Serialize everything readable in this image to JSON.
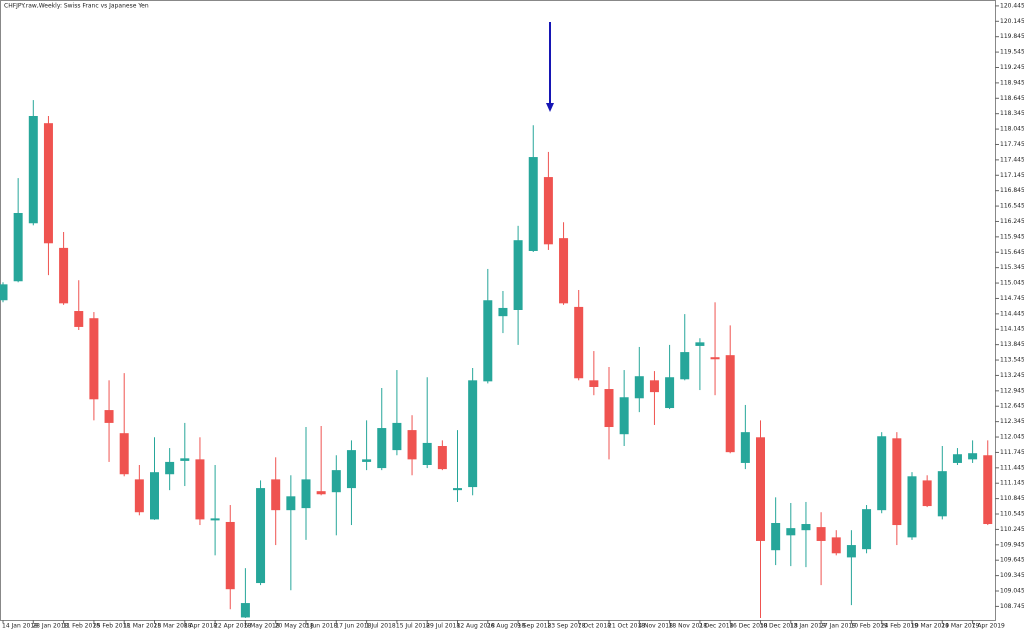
{
  "chart_data": {
    "type": "candlestick",
    "title": "CHFJPY.raw,Weekly: Swiss Franc vs Japanese Yen",
    "categories": [
      "14 Jan 2018",
      null,
      "28 Jan 2018",
      null,
      "11 Feb 2018",
      null,
      "25 Feb 2018",
      null,
      "11 Mar 2018",
      null,
      "25 Mar 2018",
      null,
      "8 Apr 2018",
      null,
      "22 Apr 2018",
      null,
      "6 May 2018",
      null,
      "20 May 2018",
      null,
      "3 Jun 2018",
      null,
      "17 Jun 2018",
      null,
      "1 Jul 2018",
      null,
      "15 Jul 2018",
      null,
      "29 Jul 2018",
      null,
      "12 Aug 2018",
      null,
      "26 Aug 2018",
      null,
      "9 Sep 2018",
      null,
      "23 Sep 2018",
      null,
      "7 Oct 2018",
      null,
      "21 Oct 2018",
      null,
      "4 Nov 2018",
      null,
      "18 Nov 2018",
      null,
      "2 Dec 2018",
      null,
      "16 Dec 2018",
      null,
      "30 Dec 2018",
      null,
      "13 Jan 2019",
      null,
      "27 Jan 2019",
      null,
      "10 Feb 2019",
      null,
      "24 Feb 2019",
      null,
      "10 Mar 2019",
      null,
      "24 Mar 2019",
      null,
      "7 Apr 2019",
      null
    ],
    "open": [
      114.71,
      115.08,
      116.21,
      118.16,
      115.73,
      114.5,
      114.36,
      112.57,
      112.12,
      111.22,
      110.44,
      111.32,
      111.58,
      111.61,
      110.43,
      110.39,
      108.53,
      109.2,
      111.22,
      110.62,
      110.66,
      110.99,
      110.97,
      111.05,
      111.56,
      111.44,
      111.79,
      112.18,
      111.5,
      111.87,
      111.01,
      111.07,
      113.13,
      114.4,
      114.52,
      115.67,
      117.11,
      115.92,
      114.58,
      113.15,
      112.98,
      112.1,
      112.8,
      113.15,
      112.61,
      113.17,
      113.82,
      113.6,
      113.64,
      111.54,
      112.04,
      109.84,
      110.13,
      110.23,
      110.29,
      110.09,
      109.7,
      109.86,
      110.62,
      112.02,
      110.09,
      111.2,
      110.5,
      111.54,
      111.61,
      111.69
    ],
    "high": [
      115.06,
      117.09,
      118.61,
      118.3,
      116.04,
      115.1,
      114.48,
      113.15,
      113.29,
      111.5,
      112.04,
      111.83,
      112.32,
      112.04,
      111.5,
      110.72,
      109.49,
      111.2,
      111.65,
      111.3,
      112.24,
      112.26,
      111.69,
      111.98,
      112.37,
      113.0,
      113.35,
      112.47,
      113.21,
      111.98,
      112.18,
      113.39,
      115.32,
      114.89,
      116.16,
      118.12,
      117.6,
      116.23,
      114.91,
      113.72,
      113.41,
      113.35,
      113.8,
      113.33,
      113.84,
      114.44,
      113.97,
      114.67,
      114.22,
      112.67,
      112.37,
      110.87,
      110.76,
      110.78,
      110.58,
      110.23,
      110.23,
      110.72,
      112.14,
      112.14,
      111.36,
      111.3,
      111.87,
      111.83,
      111.98,
      111.98
    ],
    "low": [
      114.67,
      115.06,
      116.17,
      115.2,
      114.62,
      114.13,
      112.37,
      111.56,
      111.28,
      110.52,
      110.43,
      111.01,
      111.09,
      110.33,
      109.74,
      108.69,
      108.52,
      109.16,
      109.94,
      109.06,
      110.04,
      110.91,
      110.13,
      110.33,
      111.4,
      111.4,
      111.69,
      111.3,
      111.44,
      111.4,
      110.78,
      110.91,
      113.09,
      114.07,
      113.84,
      115.65,
      115.69,
      114.62,
      113.15,
      112.86,
      111.61,
      111.87,
      112.53,
      112.28,
      112.59,
      113.15,
      112.96,
      112.86,
      111.73,
      111.42,
      108.52,
      109.55,
      109.53,
      109.51,
      109.16,
      109.74,
      108.77,
      109.78,
      110.56,
      109.94,
      110.04,
      110.68,
      110.44,
      111.5,
      111.54,
      110.33
    ],
    "close": [
      115.02,
      116.41,
      118.3,
      115.82,
      114.65,
      114.19,
      112.78,
      112.32,
      111.32,
      110.58,
      111.36,
      111.56,
      111.63,
      110.44,
      110.46,
      109.08,
      108.81,
      111.05,
      110.62,
      110.89,
      111.22,
      110.93,
      111.4,
      111.79,
      111.61,
      112.22,
      112.32,
      111.61,
      111.93,
      111.42,
      111.05,
      113.15,
      114.71,
      114.56,
      115.88,
      117.5,
      115.8,
      114.65,
      113.19,
      113.02,
      112.24,
      112.82,
      113.23,
      112.92,
      113.21,
      113.7,
      113.89,
      113.56,
      111.75,
      112.14,
      110.02,
      110.37,
      110.27,
      110.35,
      110.02,
      109.78,
      109.94,
      110.64,
      112.06,
      110.33,
      111.28,
      110.7,
      111.38,
      111.71,
      111.73,
      110.35
    ],
    "up_color": "#26a69a",
    "down_color": "#ef5350",
    "ylim": [
      108.48,
      120.56
    ],
    "yticks": [
      108.745,
      109.045,
      109.345,
      109.645,
      109.945,
      110.245,
      110.545,
      110.845,
      111.145,
      111.445,
      111.745,
      112.045,
      112.345,
      112.645,
      112.945,
      113.245,
      113.545,
      113.845,
      114.145,
      114.445,
      114.745,
      115.045,
      115.345,
      115.645,
      115.945,
      116.245,
      116.545,
      116.845,
      117.145,
      117.445,
      117.745,
      118.045,
      118.345,
      118.645,
      118.945,
      119.245,
      119.545,
      119.845,
      120.145,
      120.445
    ]
  }
}
